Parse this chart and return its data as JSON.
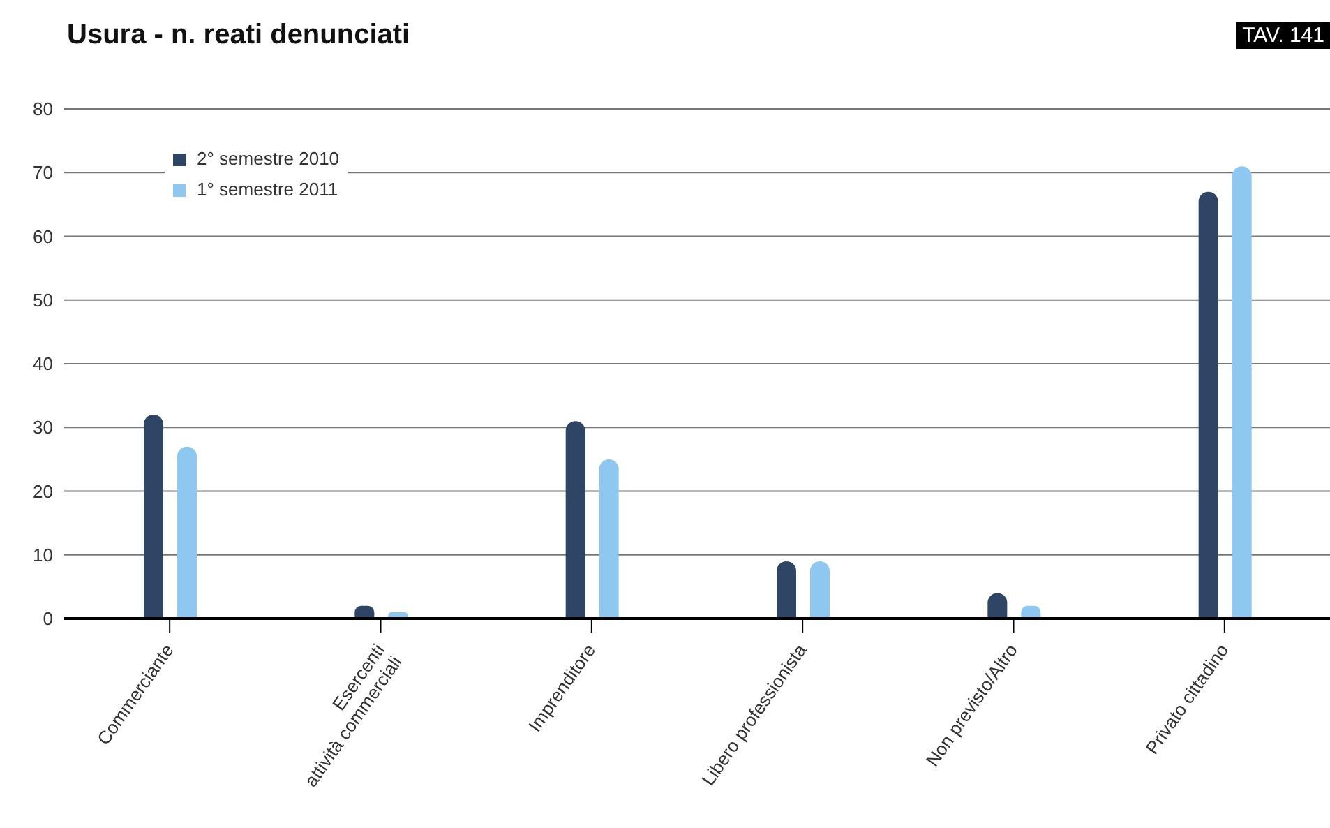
{
  "chart_data": {
    "type": "bar",
    "title": "Usura - n. reati denunciati",
    "annotations": [
      "TAV. 141"
    ],
    "categories": [
      "Commerciante",
      "Esercenti\nattività commerciali",
      "Imprenditore",
      "Libero professionista",
      "Non previsto/Altro",
      "Privato cittadino"
    ],
    "series": [
      {
        "name": "2° semestre 2010",
        "color": "#2f4566",
        "values": [
          32,
          2,
          31,
          9,
          4,
          67
        ]
      },
      {
        "name": "1° semestre 2011",
        "color": "#8ec8f0",
        "values": [
          27,
          1,
          25,
          9,
          2,
          71
        ]
      }
    ],
    "ylim": [
      0,
      80
    ],
    "yticks": [
      0,
      10,
      20,
      30,
      40,
      50,
      60,
      70,
      80
    ],
    "grid": "y",
    "legend": "top left"
  }
}
